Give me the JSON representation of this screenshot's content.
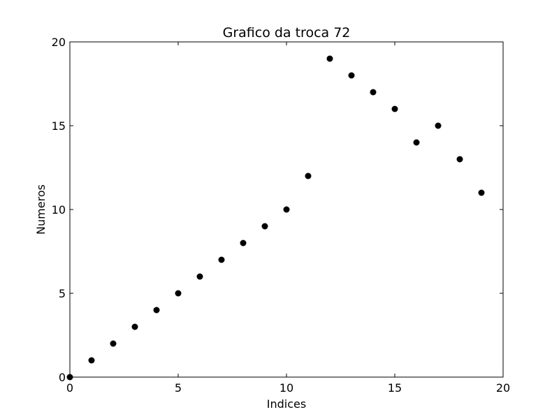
{
  "chart_data": {
    "type": "scatter",
    "title": "Grafico da troca 72",
    "xlabel": "Indices",
    "ylabel": "Numeros",
    "xlim": [
      0,
      20
    ],
    "ylim": [
      0,
      20
    ],
    "xticks": [
      0,
      5,
      10,
      15,
      20
    ],
    "yticks": [
      0,
      5,
      10,
      15,
      20
    ],
    "grid": false,
    "marker_color": "#000000",
    "series": [
      {
        "x": [
          0,
          1,
          2,
          3,
          4,
          5,
          6,
          7,
          8,
          9,
          10,
          11,
          12,
          13,
          14,
          15,
          16,
          17,
          18,
          19
        ],
        "y": [
          0,
          1,
          2,
          3,
          4,
          5,
          6,
          7,
          8,
          9,
          10,
          12,
          19,
          18,
          17,
          16,
          14,
          15,
          13,
          11
        ]
      }
    ]
  }
}
